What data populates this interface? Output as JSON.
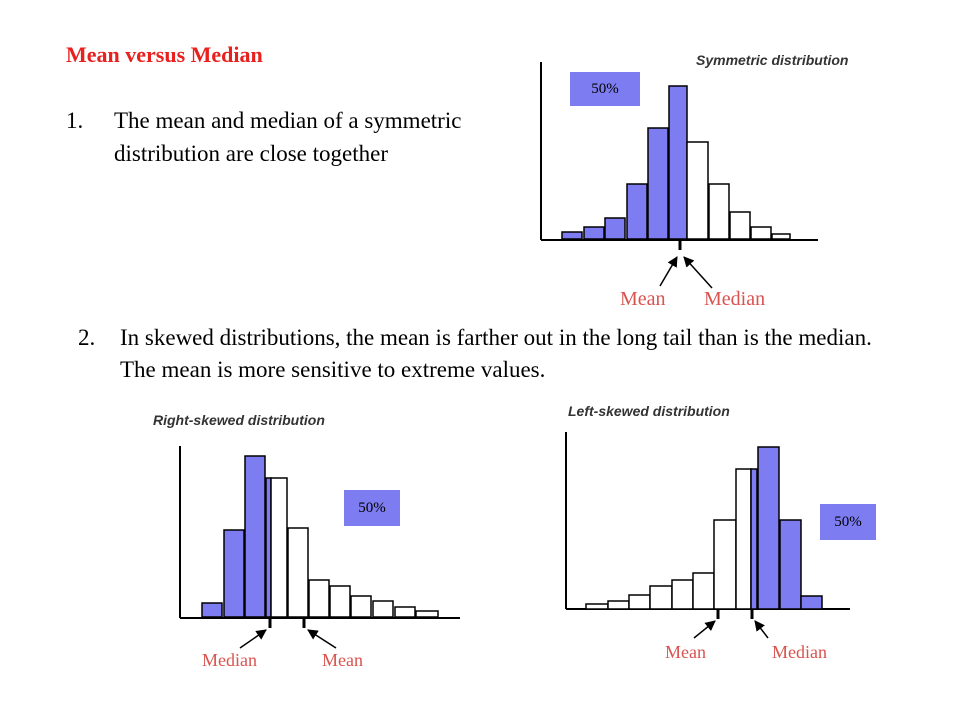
{
  "title": "Mean versus Median",
  "point1": {
    "number": "1.",
    "text": "The mean and median of a symmetric distribution are close together"
  },
  "point2": {
    "number": "2.",
    "text": "In skewed distributions, the mean is farther out in the long tail than is the median. The mean is more sensitive to extreme values."
  },
  "colors": {
    "accent_red": "#e8201e",
    "bar_fill": "#7d7cf0",
    "label_red": "#d9534f"
  },
  "charts": {
    "symmetric": {
      "title": "Symmetric distribution",
      "percent_label": "50%",
      "mean_label": "Mean",
      "median_label": "Median"
    },
    "right_skewed": {
      "title": "Right-skewed distribution",
      "percent_label": "50%",
      "mean_label": "Mean",
      "median_label": "Median"
    },
    "left_skewed": {
      "title": "Left-skewed distribution",
      "percent_label": "50%",
      "mean_label": "Mean",
      "median_label": "Median"
    }
  }
}
